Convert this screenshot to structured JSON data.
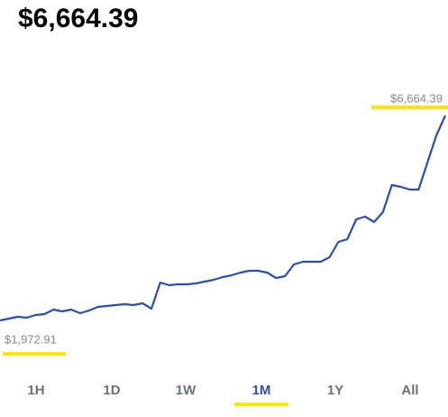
{
  "chart_data": {
    "type": "line",
    "title": "$6,664.39",
    "color": "#2a4db3",
    "values": [
      1972.91,
      2014,
      2056,
      2035,
      2097,
      2118,
      2221,
      2180,
      2221,
      2138,
      2200,
      2283,
      2304,
      2324,
      2345,
      2324,
      2366,
      2242,
      2841,
      2779,
      2800,
      2800,
      2820,
      2862,
      2903,
      2965,
      3006,
      3068,
      3110,
      3110,
      3068,
      2944,
      2986,
      3254,
      3316,
      3316,
      3316,
      3420,
      3771,
      3833,
      4288,
      4350,
      4226,
      4453,
      5073,
      5032,
      4970,
      4970,
      5590,
      6210,
      6664.39
    ],
    "high": {
      "value": 6664.39,
      "label": "$6,664.39"
    },
    "low": {
      "value": 1972.91,
      "label": "$1,972.91"
    }
  },
  "tabs": [
    "1H",
    "1D",
    "1W",
    "1M",
    "1Y",
    "All"
  ],
  "selected_tab": 3
}
